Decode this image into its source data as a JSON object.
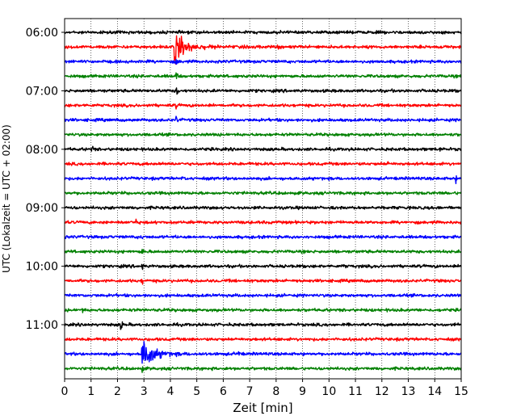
{
  "chart_data": {
    "type": "line",
    "title": "",
    "xlabel": "Zeit  [min]",
    "ylabel": "UTC (Lokalzeit = UTC + 02:00)",
    "xlim": [
      0,
      15
    ],
    "x_ticks": [
      "0",
      "1",
      "2",
      "3",
      "4",
      "5",
      "6",
      "7",
      "8",
      "9",
      "10",
      "11",
      "12",
      "13",
      "14",
      "15"
    ],
    "y_ticks": [
      "06:00",
      "07:00",
      "08:00",
      "09:00",
      "10:00",
      "11:00"
    ],
    "y_tick_row_index": [
      0,
      4,
      8,
      12,
      16,
      20
    ],
    "minutes_per_row": 15,
    "grid": "vertical dotted at each minute",
    "colors_cycle": [
      "#000000",
      "#ff0000",
      "#0000ff",
      "#008000"
    ],
    "rows": [
      {
        "start": "06:00",
        "color": "#000000",
        "events": []
      },
      {
        "start": "06:15",
        "color": "#ff0000",
        "events": [
          {
            "t": 4.2,
            "amp": 2.6,
            "type": "quake"
          },
          {
            "t": 8.1,
            "amp": 0.5,
            "type": "spike"
          }
        ]
      },
      {
        "start": "06:30",
        "color": "#0000ff",
        "events": [
          {
            "t": 4.25,
            "amp": 1.2,
            "type": "spike"
          }
        ]
      },
      {
        "start": "06:45",
        "color": "#008000",
        "events": [
          {
            "t": 4.25,
            "amp": 1.0,
            "type": "spike"
          }
        ]
      },
      {
        "start": "07:00",
        "color": "#000000",
        "events": [
          {
            "t": 4.25,
            "amp": 1.0,
            "type": "spike"
          }
        ]
      },
      {
        "start": "07:15",
        "color": "#ff0000",
        "events": [
          {
            "t": 4.25,
            "amp": 1.0,
            "type": "spike"
          }
        ]
      },
      {
        "start": "07:30",
        "color": "#0000ff",
        "events": [
          {
            "t": 4.25,
            "amp": 1.0,
            "type": "spike"
          }
        ]
      },
      {
        "start": "07:45",
        "color": "#008000",
        "events": []
      },
      {
        "start": "08:00",
        "color": "#000000",
        "events": [
          {
            "t": 1.05,
            "amp": 0.6,
            "type": "spike"
          },
          {
            "t": 14.2,
            "amp": 0.5,
            "type": "spike"
          }
        ]
      },
      {
        "start": "08:15",
        "color": "#ff0000",
        "events": [
          {
            "t": 12.2,
            "amp": 0.5,
            "type": "spike"
          }
        ]
      },
      {
        "start": "08:30",
        "color": "#0000ff",
        "events": [
          {
            "t": 4.5,
            "amp": 0.5,
            "type": "spike"
          },
          {
            "t": 14.8,
            "amp": 0.5,
            "type": "spike"
          }
        ]
      },
      {
        "start": "08:45",
        "color": "#008000",
        "events": []
      },
      {
        "start": "09:00",
        "color": "#000000",
        "events": []
      },
      {
        "start": "09:15",
        "color": "#ff0000",
        "events": [
          {
            "t": 2.7,
            "amp": 0.5,
            "type": "spike"
          }
        ]
      },
      {
        "start": "09:30",
        "color": "#0000ff",
        "events": [
          {
            "t": 2.9,
            "amp": 0.6,
            "type": "spike"
          }
        ]
      },
      {
        "start": "09:45",
        "color": "#008000",
        "events": [
          {
            "t": 2.95,
            "amp": 0.8,
            "type": "spike"
          }
        ]
      },
      {
        "start": "10:00",
        "color": "#000000",
        "events": [
          {
            "t": 2.95,
            "amp": 0.6,
            "type": "spike"
          },
          {
            "t": 10.6,
            "amp": 0.5,
            "type": "spike"
          }
        ]
      },
      {
        "start": "10:15",
        "color": "#ff0000",
        "events": [
          {
            "t": 2.95,
            "amp": 0.5,
            "type": "spike"
          }
        ]
      },
      {
        "start": "10:30",
        "color": "#0000ff",
        "events": [
          {
            "t": 2.95,
            "amp": 0.5,
            "type": "spike"
          }
        ]
      },
      {
        "start": "10:45",
        "color": "#008000",
        "events": [
          {
            "t": 0.7,
            "amp": 0.6,
            "type": "spike"
          }
        ]
      },
      {
        "start": "11:00",
        "color": "#000000",
        "events": [
          {
            "t": 2.15,
            "amp": 1.3,
            "type": "spike"
          },
          {
            "t": 14.8,
            "amp": 0.5,
            "type": "spike"
          }
        ]
      },
      {
        "start": "11:15",
        "color": "#ff0000",
        "events": []
      },
      {
        "start": "11:30",
        "color": "#0000ff",
        "events": [
          {
            "t": 2.95,
            "amp": 3.0,
            "type": "quake"
          },
          {
            "t": 6.6,
            "amp": 0.5,
            "type": "spike"
          }
        ]
      },
      {
        "start": "11:45",
        "color": "#008000",
        "events": [
          {
            "t": 2.95,
            "amp": 0.6,
            "type": "spike"
          }
        ]
      }
    ]
  }
}
